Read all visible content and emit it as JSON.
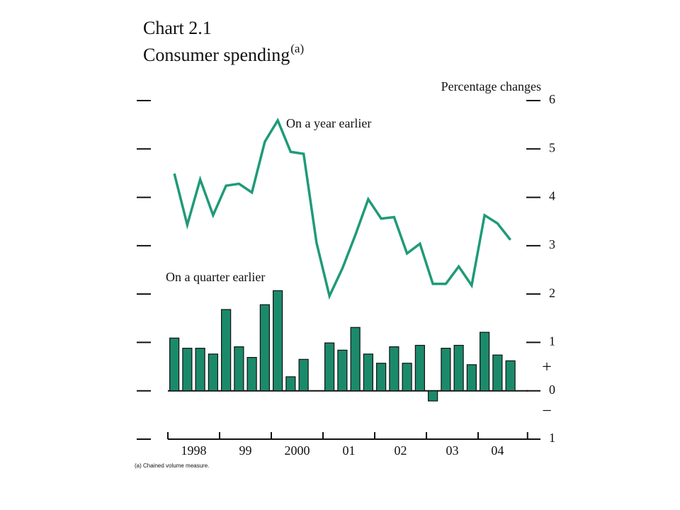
{
  "chart_data": {
    "type": "bar_line",
    "title": "Chart 2.1",
    "subtitle": "Consumer spending",
    "title_note": "(a)",
    "y_axis_label": "Percentage changes",
    "sign_labels": [
      "+",
      "−"
    ],
    "footnote": "(a)  Chained volume measure.",
    "categories": [
      "1998",
      null,
      null,
      null,
      "99",
      null,
      null,
      null,
      "2000",
      null,
      null,
      null,
      "01",
      null,
      null,
      null,
      "02",
      null,
      null,
      null,
      "03",
      null,
      null,
      null,
      "04",
      null,
      null
    ],
    "series": [
      {
        "name": "On a quarter earlier",
        "type": "bar",
        "color": "#1b8a6b",
        "values": [
          1.09,
          0.88,
          0.88,
          0.76,
          1.68,
          0.91,
          0.69,
          1.78,
          2.07,
          0.29,
          0.65,
          0,
          0.99,
          0.84,
          1.31,
          0.76,
          0.57,
          0.91,
          0.57,
          0.94,
          -0.21,
          0.88,
          0.94,
          0.54,
          1.21,
          0.74,
          0.62
        ]
      },
      {
        "name": "On a year earlier",
        "type": "line",
        "color": "#1f9a78",
        "values": [
          4.49,
          3.43,
          4.37,
          3.63,
          4.24,
          4.28,
          4.1,
          5.15,
          5.59,
          4.94,
          4.9,
          3.06,
          1.96,
          2.53,
          3.22,
          3.96,
          3.56,
          3.59,
          2.84,
          3.04,
          2.21,
          2.21,
          2.57,
          2.18,
          3.63,
          3.46,
          3.12
        ]
      }
    ],
    "ylim": [
      -1,
      6
    ],
    "yticks": [
      {
        "value": -1,
        "label": "1"
      },
      0,
      1,
      2,
      3,
      4,
      5,
      6
    ]
  }
}
